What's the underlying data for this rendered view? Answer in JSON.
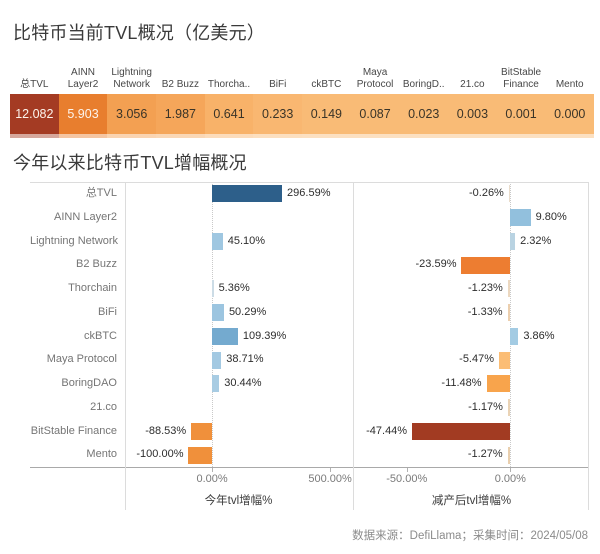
{
  "page": {
    "title_current": "比特币当前TVL概况（亿美元）",
    "title_growth": "今年以来比特币TVL增幅概况",
    "footer": "数据来源：DefiLlama；采集时间：2024/05/08"
  },
  "chart_data": [
    {
      "type": "table",
      "title": "比特币当前TVL概况（亿美元）",
      "columns": [
        "总TVL",
        "AINN Layer2",
        "Lightning Network",
        "B2 Buzz",
        "Thorcha..",
        "BiFi",
        "ckBTC",
        "Maya Protocol",
        "BoringD..",
        "21.co",
        "BitStable Finance",
        "Mento"
      ],
      "values": [
        12.082,
        5.903,
        3.056,
        1.987,
        0.641,
        0.233,
        0.149,
        0.087,
        0.023,
        0.003,
        0.001,
        0.0
      ],
      "value_labels": [
        "12.082",
        "5.903",
        "3.056",
        "1.987",
        "0.641",
        "0.233",
        "0.149",
        "0.087",
        "0.023",
        "0.003",
        "0.001",
        "0.000"
      ],
      "cell_colors": [
        "#a43b23",
        "#e87e2e",
        "#f3a052",
        "#f5a65a",
        "#f8b269",
        "#f9b771",
        "#f9bb76",
        "#f9bb76",
        "#f9bb76",
        "#f9bb76",
        "#f9bb76",
        "#f9bb76"
      ],
      "text_colors": [
        "#fdf4ec",
        "#fdf4ec",
        "#3a3428",
        "#3a3428",
        "#3a3428",
        "#3a3428",
        "#3a3428",
        "#3a3428",
        "#3a3428",
        "#3a3428",
        "#3a3428",
        "#3a3428"
      ]
    },
    {
      "type": "bar",
      "orientation": "horizontal",
      "title": "今年以来比特币TVL增幅概况",
      "categories": [
        "总TVL",
        "AINN Layer2",
        "Lightning Network",
        "B2 Buzz",
        "Thorchain",
        "BiFi",
        "ckBTC",
        "Maya Protocol",
        "BoringDAO",
        "21.co",
        "BitStable Finance",
        "Mento"
      ],
      "series": [
        {
          "name": "今年tvl增幅%",
          "values": [
            296.59,
            null,
            45.1,
            null,
            5.36,
            50.29,
            109.39,
            38.71,
            30.44,
            null,
            -88.53,
            -100.0
          ],
          "labels": [
            "296.59%",
            "",
            "45.10%",
            "",
            "5.36%",
            "50.29%",
            "109.39%",
            "38.71%",
            "30.44%",
            "",
            "-88.53%",
            "-100.00%"
          ],
          "colors": [
            "#2d5f8a",
            null,
            "#9fc7e1",
            null,
            "#ccdce6",
            "#9cc5e0",
            "#74aacf",
            "#a3c9e2",
            "#a8cce3",
            null,
            "#f0903b",
            "#f0903b"
          ],
          "xlim": [
            -369,
            593
          ],
          "axis_ticks": [
            {
              "value": 0,
              "label": "0.00%"
            },
            {
              "value": 500,
              "label": "500.00%"
            }
          ]
        },
        {
          "name": "减产后tvl增幅%",
          "values": [
            -0.26,
            9.8,
            2.32,
            -23.59,
            -1.23,
            -1.33,
            3.86,
            -5.47,
            -11.48,
            -1.17,
            -47.44,
            -1.27
          ],
          "labels": [
            "-0.26%",
            "9.80%",
            "2.32%",
            "-23.59%",
            "-1.23%",
            "-1.33%",
            "3.86%",
            "-5.47%",
            "-11.48%",
            "-1.17%",
            "-47.44%",
            "-1.27%"
          ],
          "colors": [
            "#e9dccb",
            "#92c0dd",
            "#b9d3e2",
            "#ed7d31",
            "#ecd8c0",
            "#eccfae",
            "#a3cbe3",
            "#fbbd75",
            "#f8a44c",
            "#ead3b5",
            "#a23b22",
            "#e9cfae"
          ],
          "xlim": [
            -75,
            37.5
          ],
          "axis_ticks": [
            {
              "value": -50,
              "label": "-50.00%"
            },
            {
              "value": 0,
              "label": "0.00%"
            }
          ]
        }
      ],
      "grid": false,
      "legend": false
    }
  ]
}
